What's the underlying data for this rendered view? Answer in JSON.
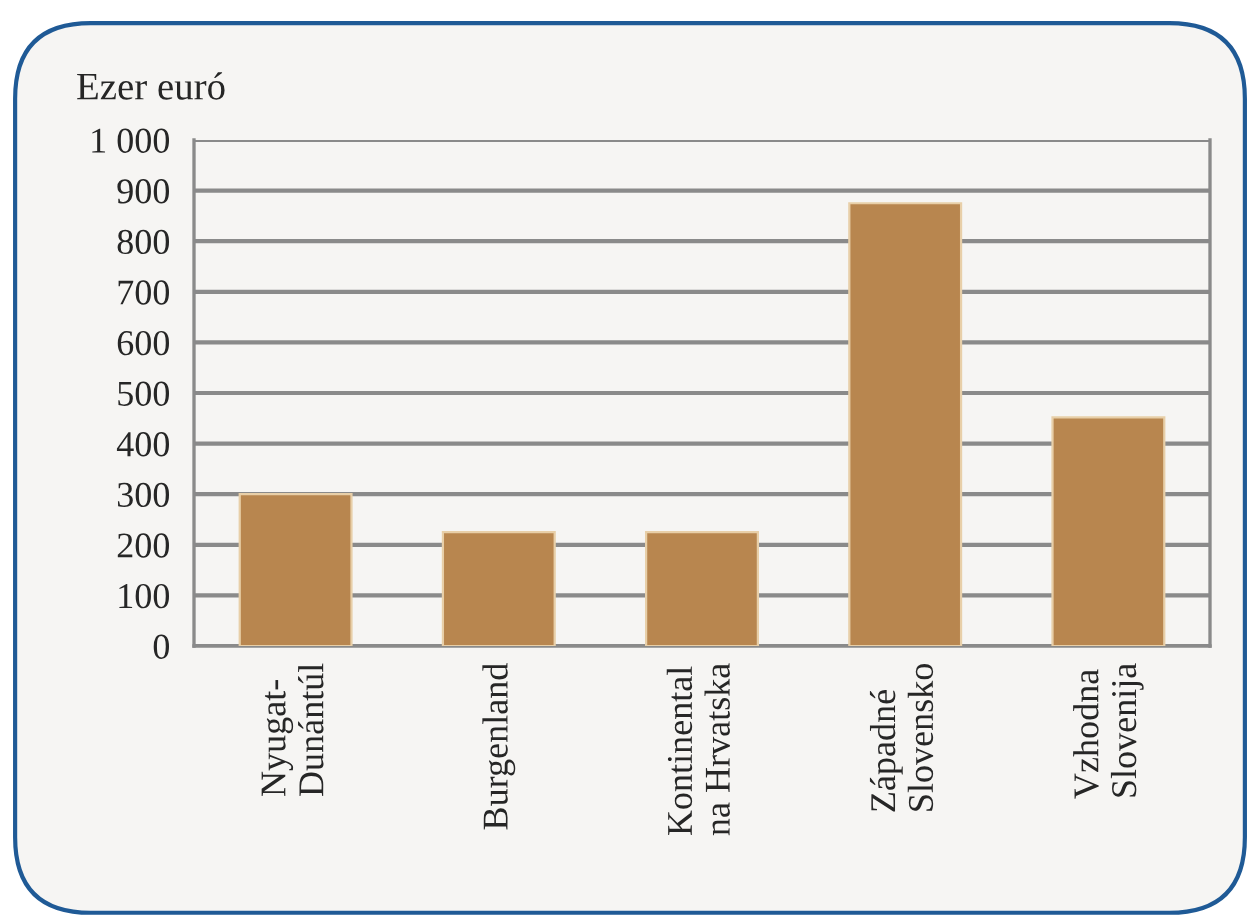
{
  "chart_data": {
    "type": "bar",
    "ylabel": "Ezer euró",
    "categories": [
      "Nyugat-\nDunántúl",
      "Burgenland",
      "Kontinental\nna Hrvatska",
      "Západné\nSlovensko",
      "Vzhodna\nSlovenija"
    ],
    "values": [
      300,
      225,
      225,
      875,
      452
    ],
    "color": "#b8864f",
    "ylim": [
      0,
      1000
    ],
    "yticks": [
      0,
      100,
      200,
      300,
      400,
      500,
      600,
      700,
      800,
      900,
      {
        "value": 1000,
        "label": "1 000"
      }
    ],
    "grid": "y"
  }
}
